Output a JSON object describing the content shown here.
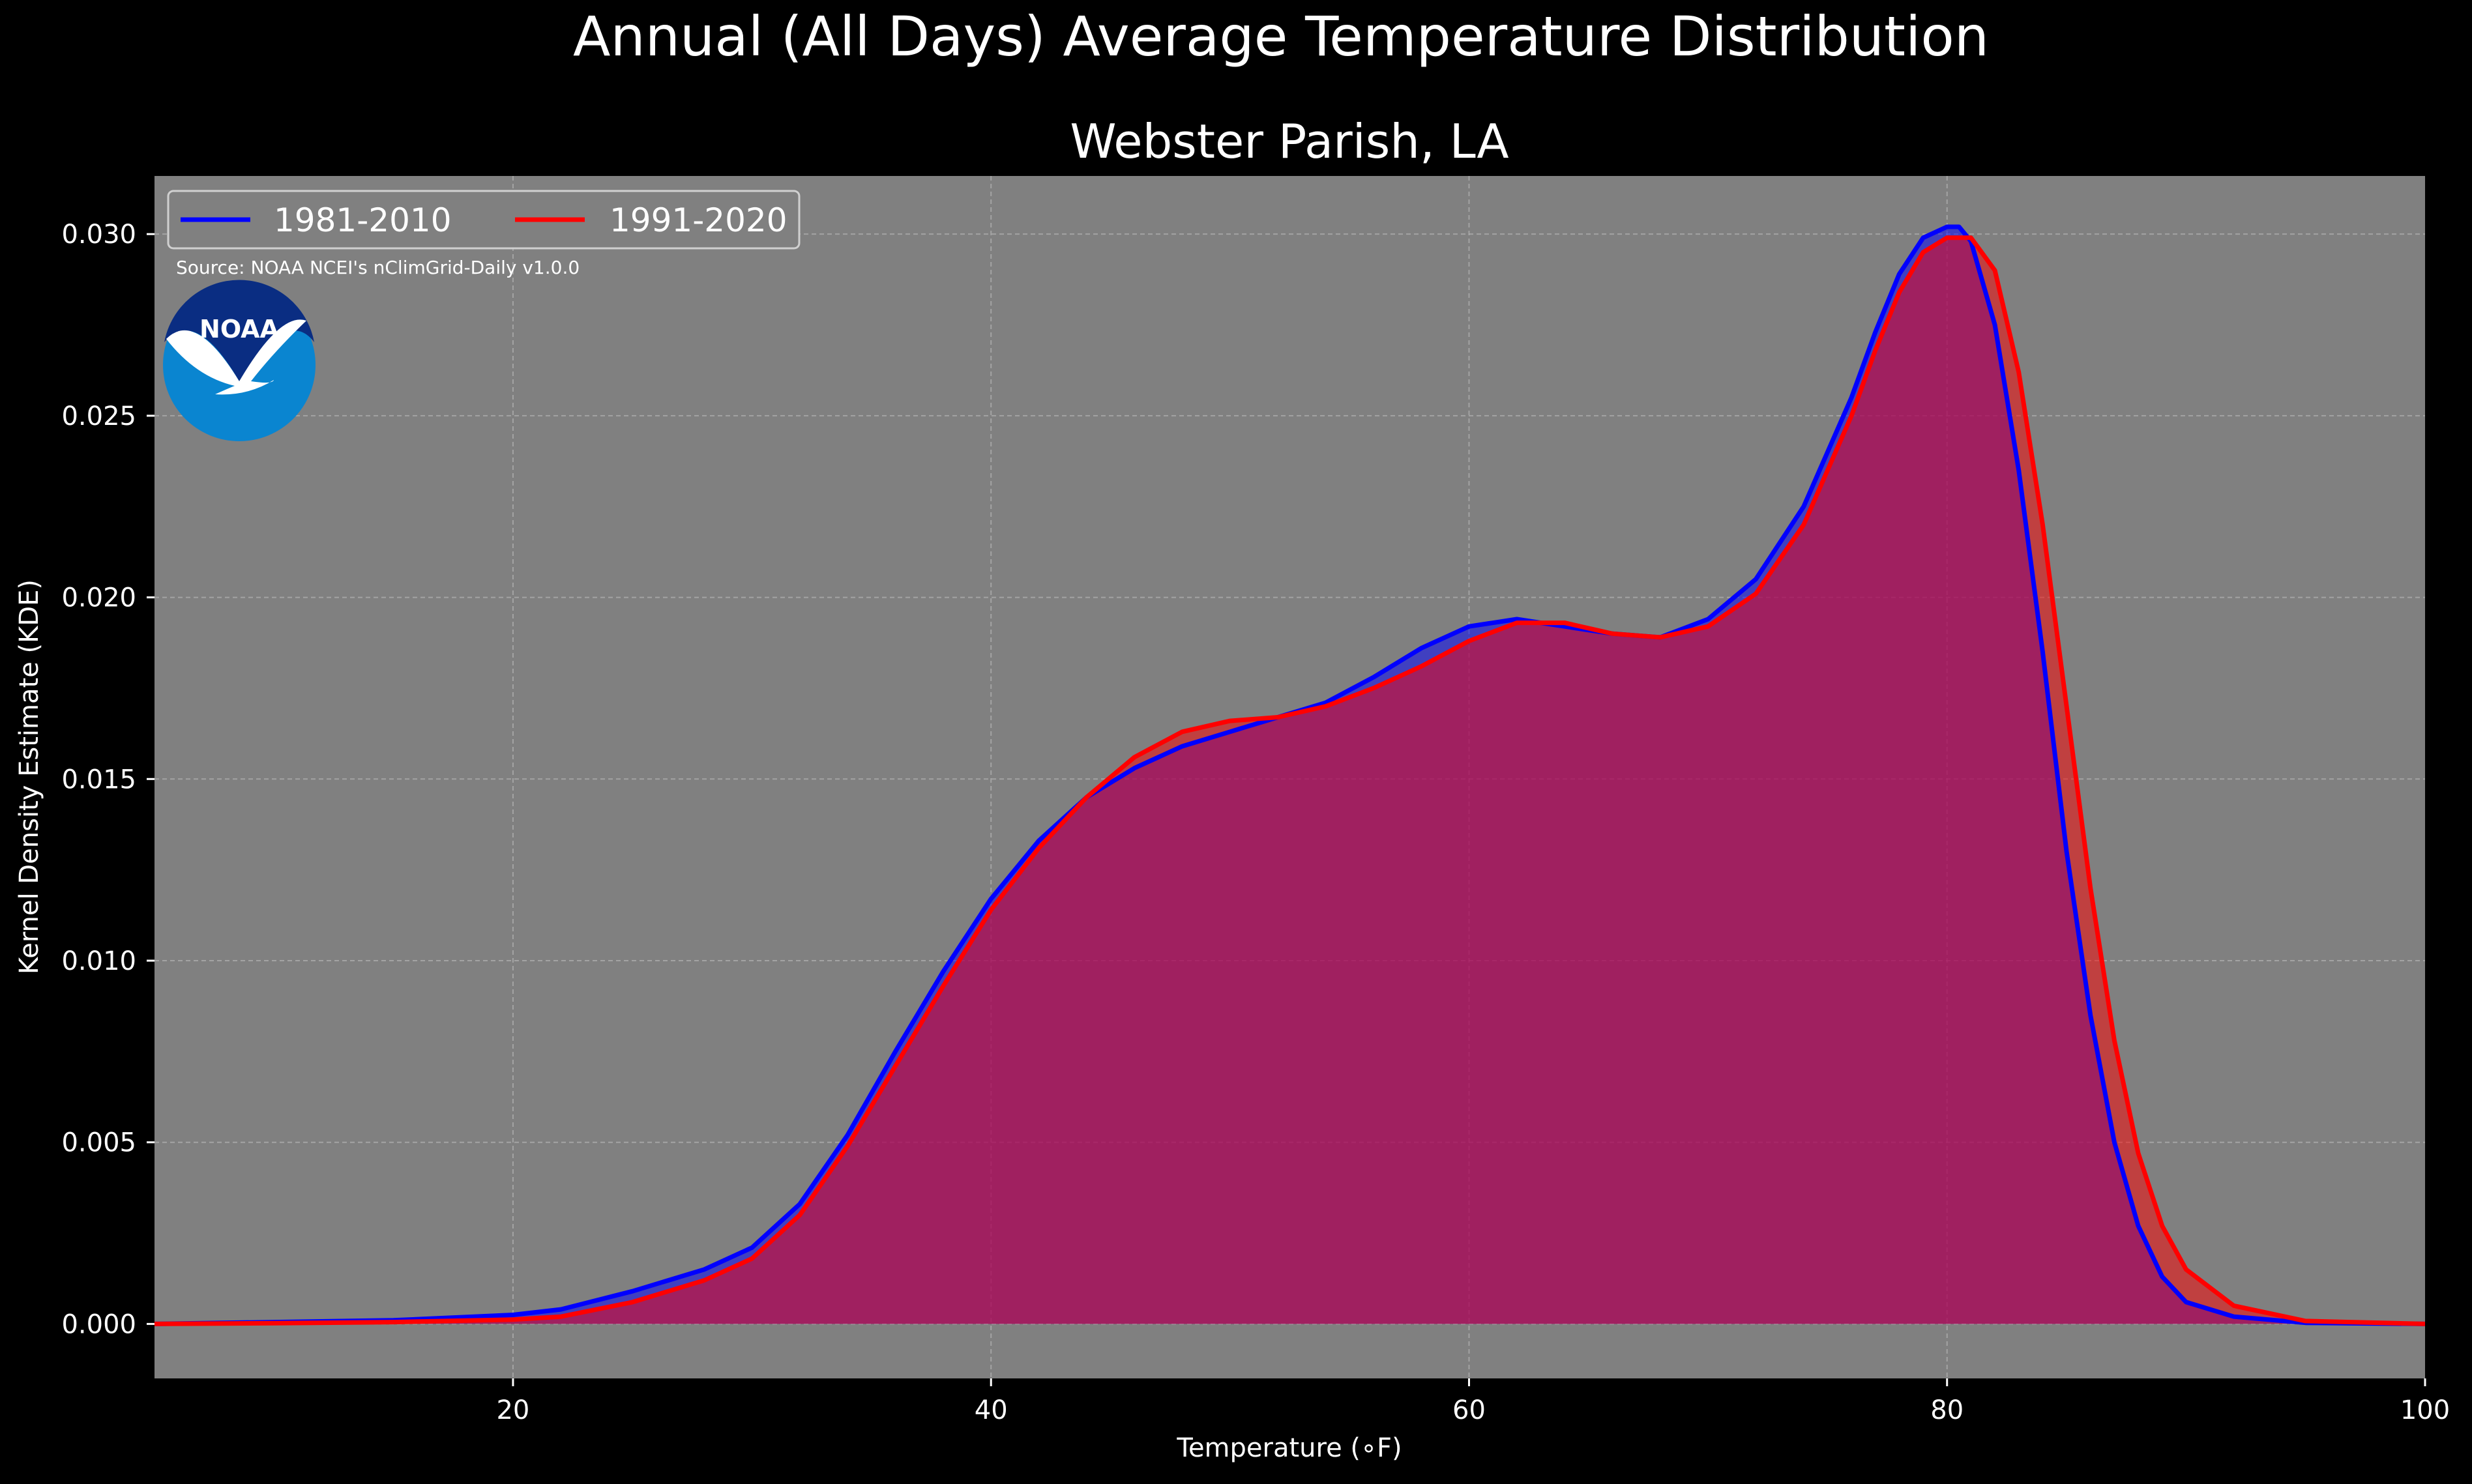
{
  "suptitle": "Annual (All Days) Average Temperature Distribution",
  "source_note": "Source: NOAA NCEI's nClimGrid-Daily v1.0.0",
  "logo": {
    "icon": "noaa-logo",
    "text": "NOAA"
  },
  "colors": {
    "background": "#000000",
    "plot_background": "#808080",
    "series_1981": "#0000ff",
    "series_1991": "#ff0000",
    "overlap_fill": "#9e1f5a",
    "text": "#ffffff",
    "grid": "#b3b3b3"
  },
  "chart_data": {
    "type": "area",
    "title": "Webster Parish, LA",
    "xlabel": "Temperature (∘F)",
    "ylabel": "Kernel Density Estimate (KDE)",
    "xlim": [
      5,
      100
    ],
    "ylim": [
      -0.0015,
      0.0316
    ],
    "xticks": [
      20,
      40,
      60,
      80,
      100
    ],
    "yticks": [
      0.0,
      0.005,
      0.01,
      0.015,
      0.02,
      0.025,
      0.03
    ],
    "ytick_labels": [
      "0.000",
      "0.005",
      "0.010",
      "0.015",
      "0.020",
      "0.025",
      "0.030"
    ],
    "grid": true,
    "legend_position": "top-left",
    "series": [
      {
        "name": "1981-2010",
        "color": "#0000ff",
        "x": [
          5,
          10,
          15,
          20,
          22,
          25,
          28,
          30,
          32,
          34,
          36,
          38,
          40,
          42,
          44,
          46,
          48,
          50,
          52,
          54,
          56,
          58,
          60,
          62,
          64,
          66,
          68,
          70,
          72,
          74,
          76,
          77,
          78,
          79,
          80,
          80.5,
          81,
          82,
          83,
          84,
          85,
          86,
          87,
          88,
          89,
          90,
          92,
          95,
          100
        ],
        "y": [
          0.0,
          5e-05,
          0.0001,
          0.00025,
          0.0004,
          0.0009,
          0.0015,
          0.0021,
          0.0033,
          0.0052,
          0.0075,
          0.0097,
          0.0117,
          0.0133,
          0.0145,
          0.0153,
          0.0159,
          0.0163,
          0.0167,
          0.0171,
          0.0178,
          0.0186,
          0.0192,
          0.0194,
          0.0192,
          0.019,
          0.0189,
          0.0194,
          0.0205,
          0.0225,
          0.0255,
          0.0273,
          0.0289,
          0.0299,
          0.0302,
          0.0302,
          0.0298,
          0.0275,
          0.0235,
          0.0185,
          0.013,
          0.0085,
          0.005,
          0.0027,
          0.0013,
          0.0006,
          0.0002,
          3e-05,
          0.0
        ]
      },
      {
        "name": "1991-2020",
        "color": "#ff0000",
        "x": [
          5,
          10,
          15,
          20,
          22,
          25,
          28,
          30,
          32,
          34,
          36,
          38,
          40,
          42,
          44,
          46,
          48,
          50,
          52,
          54,
          56,
          58,
          60,
          62,
          64,
          66,
          68,
          70,
          72,
          74,
          76,
          77,
          78,
          79,
          80,
          81,
          82,
          83,
          84,
          85,
          86,
          87,
          88,
          89,
          90,
          92,
          95,
          100
        ],
        "y": [
          0.0,
          2e-05,
          5e-05,
          0.00012,
          0.0002,
          0.0006,
          0.0012,
          0.0018,
          0.003,
          0.0049,
          0.0071,
          0.0093,
          0.0114,
          0.0131,
          0.0145,
          0.0156,
          0.0163,
          0.0166,
          0.0167,
          0.017,
          0.0175,
          0.0181,
          0.0188,
          0.0193,
          0.0193,
          0.019,
          0.0189,
          0.0192,
          0.0201,
          0.022,
          0.025,
          0.0268,
          0.0284,
          0.0295,
          0.0299,
          0.0299,
          0.029,
          0.0262,
          0.022,
          0.017,
          0.012,
          0.0078,
          0.0047,
          0.0027,
          0.0015,
          0.0005,
          8e-05,
          0.0
        ]
      }
    ]
  }
}
